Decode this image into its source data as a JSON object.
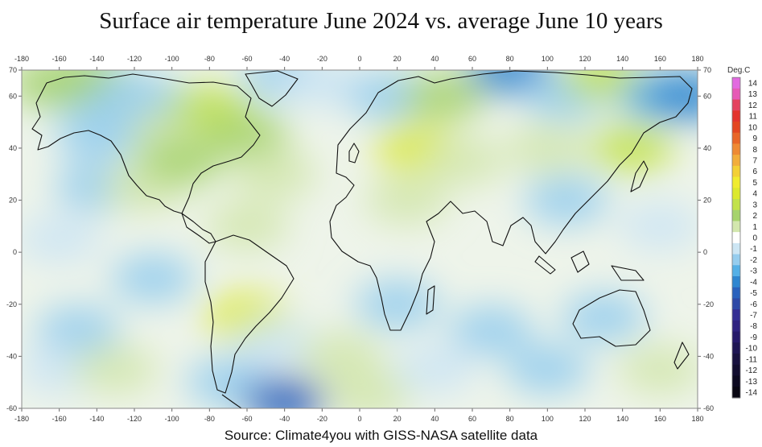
{
  "title": "Surface air temperature June 2024 vs. average June 10 years",
  "source": "Source: Climate4you with GISS-NASA satellite data",
  "map": {
    "projection": "equirectangular",
    "lon_range": [
      -180,
      180
    ],
    "lat_range": [
      -60,
      70
    ],
    "lon_ticks": [
      -180,
      -160,
      -140,
      -120,
      -100,
      -80,
      -60,
      -40,
      -20,
      0,
      20,
      40,
      60,
      80,
      100,
      120,
      140,
      160,
      180
    ],
    "lon_labels": [
      "-180",
      "-160",
      "-140",
      "-120",
      "-100",
      "-80",
      "-60",
      "-40",
      "-20",
      "0",
      "20",
      "40",
      "60",
      "80",
      "100",
      "120",
      "140",
      "160",
      "180"
    ],
    "lat_ticks": [
      70,
      60,
      40,
      20,
      0,
      -20,
      -40,
      -60
    ],
    "lat_labels": [
      "70",
      "60",
      "40",
      "20",
      "0",
      "-20",
      "-40",
      "-60"
    ],
    "field": "temperature anomaly"
  },
  "legend": {
    "title": "Deg.C",
    "labels": [
      "14",
      "13",
      "12",
      "11",
      "10",
      "9",
      "8",
      "7",
      "6",
      "5",
      "4",
      "3",
      "2",
      "1",
      "0",
      "-1",
      "-2",
      "-3",
      "-4",
      "-5",
      "-6",
      "-7",
      "-8",
      "-9",
      "-10",
      "-11",
      "-12",
      "-13",
      "-14"
    ],
    "colors": [
      "#e26ae0",
      "#e65ab6",
      "#e4435f",
      "#e3342d",
      "#e34621",
      "#e86628",
      "#ee8a34",
      "#f2ad3b",
      "#f3d035",
      "#f0ec2f",
      "#dce92e",
      "#c2e24a",
      "#a6d36d",
      "#d3e7ae",
      "#ffffff",
      "#cde6f4",
      "#96cdee",
      "#55b0e6",
      "#2f86d0",
      "#2a62bd",
      "#2f4aa7",
      "#342f93",
      "#2f2280",
      "#26196a",
      "#1e1553",
      "#18113f",
      "#120d2f",
      "#0c0920",
      "#080612"
    ]
  },
  "anomalies": [
    {
      "lon": -150,
      "lat": 63,
      "delta": -2
    },
    {
      "lon": -165,
      "lat": 65,
      "delta": 2
    },
    {
      "lon": -145,
      "lat": 67,
      "delta": 2
    },
    {
      "lon": -120,
      "lat": 60,
      "delta": -2
    },
    {
      "lon": -100,
      "lat": 55,
      "delta": -2
    },
    {
      "lon": -80,
      "lat": 55,
      "delta": 3
    },
    {
      "lon": -110,
      "lat": 45,
      "delta": 1
    },
    {
      "lon": -60,
      "lat": 45,
      "delta": 2
    },
    {
      "lon": -40,
      "lat": 68,
      "delta": -2
    },
    {
      "lon": -20,
      "lat": 65,
      "delta": -1
    },
    {
      "lon": -140,
      "lat": 45,
      "delta": -2
    },
    {
      "lon": -140,
      "lat": 25,
      "delta": -2
    },
    {
      "lon": -160,
      "lat": 5,
      "delta": -1
    },
    {
      "lon": -115,
      "lat": 25,
      "delta": 1
    },
    {
      "lon": -95,
      "lat": 35,
      "delta": 2
    },
    {
      "lon": -45,
      "lat": 30,
      "delta": 1
    },
    {
      "lon": -60,
      "lat": 10,
      "delta": 1
    },
    {
      "lon": -110,
      "lat": -10,
      "delta": -2
    },
    {
      "lon": -150,
      "lat": -30,
      "delta": -2
    },
    {
      "lon": -160,
      "lat": -45,
      "delta": -1
    },
    {
      "lon": -130,
      "lat": -45,
      "delta": 1
    },
    {
      "lon": -60,
      "lat": -25,
      "delta": 4
    },
    {
      "lon": -45,
      "lat": -35,
      "delta": -1
    },
    {
      "lon": -70,
      "lat": -50,
      "delta": -2
    },
    {
      "lon": -40,
      "lat": -57,
      "delta": -5
    },
    {
      "lon": -10,
      "lat": -40,
      "delta": 1
    },
    {
      "lon": 5,
      "lat": -55,
      "delta": 1
    },
    {
      "lon": 15,
      "lat": 60,
      "delta": -2
    },
    {
      "lon": 30,
      "lat": 40,
      "delta": 4
    },
    {
      "lon": 45,
      "lat": 60,
      "delta": 2
    },
    {
      "lon": 25,
      "lat": 20,
      "delta": 1
    },
    {
      "lon": 55,
      "lat": 35,
      "delta": 1
    },
    {
      "lon": 20,
      "lat": -20,
      "delta": -2
    },
    {
      "lon": 70,
      "lat": -30,
      "delta": -2
    },
    {
      "lon": 40,
      "lat": -45,
      "delta": -1
    },
    {
      "lon": 80,
      "lat": 70,
      "delta": -4
    },
    {
      "lon": 110,
      "lat": 60,
      "delta": -2
    },
    {
      "lon": 130,
      "lat": 68,
      "delta": 3
    },
    {
      "lon": 100,
      "lat": 40,
      "delta": 1
    },
    {
      "lon": 145,
      "lat": 40,
      "delta": 3
    },
    {
      "lon": 110,
      "lat": 20,
      "delta": -2
    },
    {
      "lon": 160,
      "lat": 10,
      "delta": -1
    },
    {
      "lon": 130,
      "lat": -25,
      "delta": -2
    },
    {
      "lon": 100,
      "lat": -45,
      "delta": -2
    },
    {
      "lon": 160,
      "lat": -45,
      "delta": 1
    },
    {
      "lon": 160,
      "lat": 60,
      "delta": -3
    },
    {
      "lon": 175,
      "lat": 60,
      "delta": -4
    }
  ]
}
